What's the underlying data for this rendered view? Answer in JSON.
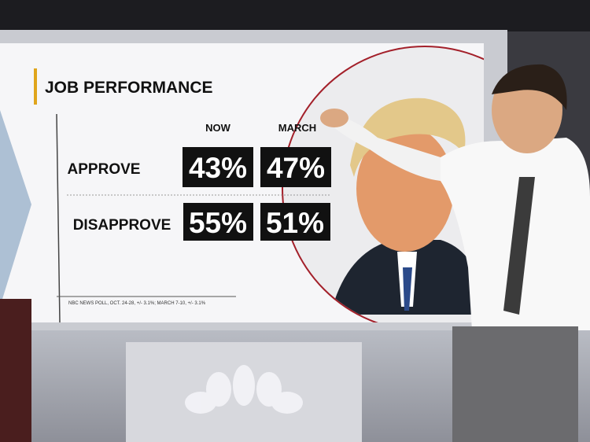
{
  "header": {
    "title": "JOB PERFORMANCE"
  },
  "table": {
    "columns": [
      "NOW",
      "MARCH"
    ],
    "rows": [
      [
        "APPROVE",
        "43%",
        "47%"
      ],
      [
        "DISAPPROVE",
        "55%",
        "51%"
      ]
    ]
  },
  "footnote": "NBC NEWS POLL, OCT. 24-28, +/- 3.1%; MARCH 7-10, +/- 3.1%"
}
